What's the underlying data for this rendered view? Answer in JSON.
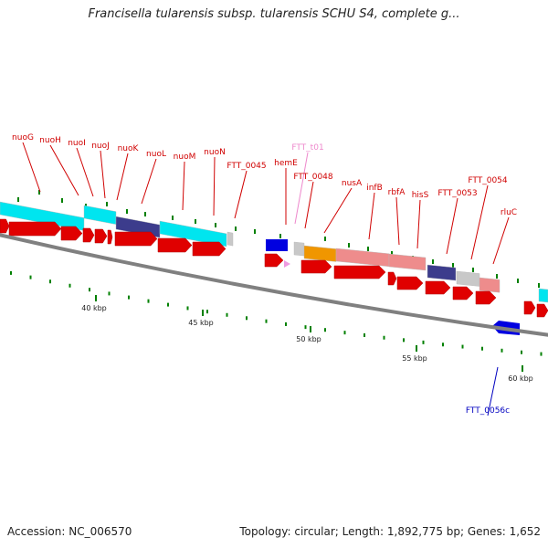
{
  "title": "Francisella tularensis subsp. tularensis SCHU S4, complete g...",
  "accession_label": "Accession: NC_006570",
  "topology_label": "Topology: circular; Length: 1,892,775 bp; Genes: 1,652",
  "colors": {
    "backbone": "#808080",
    "forward_cds": "#e00000",
    "cog_cyan": "#00e5ef",
    "cog_navy": "#3c3c8c",
    "cog_pink": "#ee8c8c",
    "cog_orange": "#f09600",
    "cog_gray": "#c8c8c8",
    "reverse_cds": "#0000e0",
    "gc_tick": "#008000",
    "label_red": "#d00000",
    "label_pink": "#ee88cc",
    "label_blue": "#0000c0"
  },
  "scale_labels": [
    "40 kbp",
    "45 kbp",
    "50 kbp",
    "55 kbp",
    "60 kbp"
  ],
  "gene_labels": [
    {
      "text": "nuoG",
      "color": "red"
    },
    {
      "text": "nuoH",
      "color": "red"
    },
    {
      "text": "nuoI",
      "color": "red"
    },
    {
      "text": "nuoJ",
      "color": "red"
    },
    {
      "text": "nuoK",
      "color": "red"
    },
    {
      "text": "nuoL",
      "color": "red"
    },
    {
      "text": "nuoM",
      "color": "red"
    },
    {
      "text": "nuoN",
      "color": "red"
    },
    {
      "text": "FTT_0045",
      "color": "red"
    },
    {
      "text": "FTT_t01",
      "color": "pink"
    },
    {
      "text": "hemE",
      "color": "red"
    },
    {
      "text": "FTT_0048",
      "color": "red"
    },
    {
      "text": "nusA",
      "color": "red"
    },
    {
      "text": "infB",
      "color": "red"
    },
    {
      "text": "rbfA",
      "color": "red"
    },
    {
      "text": "hisS",
      "color": "red"
    },
    {
      "text": "FTT_0053",
      "color": "red"
    },
    {
      "text": "FTT_0054",
      "color": "red"
    },
    {
      "text": "rluC",
      "color": "red"
    },
    {
      "text": "FTT_0056c",
      "color": "blue"
    }
  ]
}
